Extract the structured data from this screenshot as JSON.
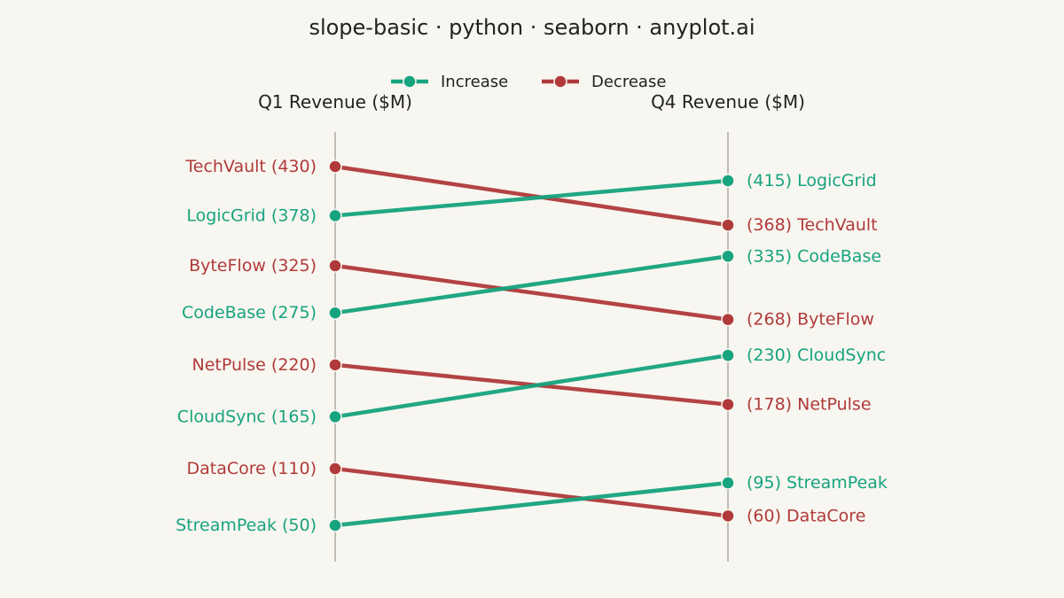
{
  "chart_data": {
    "type": "slope",
    "title": "slope-basic · python · seaborn · anyplot.ai",
    "left_axis_label": "Q1 Revenue ($M)",
    "right_axis_label": "Q4 Revenue ($M)",
    "legend": {
      "placement": "top-center",
      "items": [
        {
          "name": "Increase",
          "color": "#16A37F"
        },
        {
          "name": "Decrease",
          "color": "#B03A3A"
        }
      ]
    },
    "ylim": [
      50,
      430
    ],
    "series": [
      {
        "name": "TechVault",
        "start": 430,
        "end": 368,
        "direction": "Decrease"
      },
      {
        "name": "LogicGrid",
        "start": 378,
        "end": 415,
        "direction": "Increase"
      },
      {
        "name": "ByteFlow",
        "start": 325,
        "end": 268,
        "direction": "Decrease"
      },
      {
        "name": "CodeBase",
        "start": 275,
        "end": 335,
        "direction": "Increase"
      },
      {
        "name": "NetPulse",
        "start": 220,
        "end": 178,
        "direction": "Decrease"
      },
      {
        "name": "CloudSync",
        "start": 165,
        "end": 230,
        "direction": "Increase"
      },
      {
        "name": "DataCore",
        "start": 110,
        "end": 60,
        "direction": "Decrease"
      },
      {
        "name": "StreamPeak",
        "start": 50,
        "end": 95,
        "direction": "Increase"
      }
    ],
    "colors": {
      "increase": "#16A37F",
      "decrease": "#B03A3A",
      "axis_line": "#BFBDB6",
      "background": "#F8F6F0"
    }
  }
}
